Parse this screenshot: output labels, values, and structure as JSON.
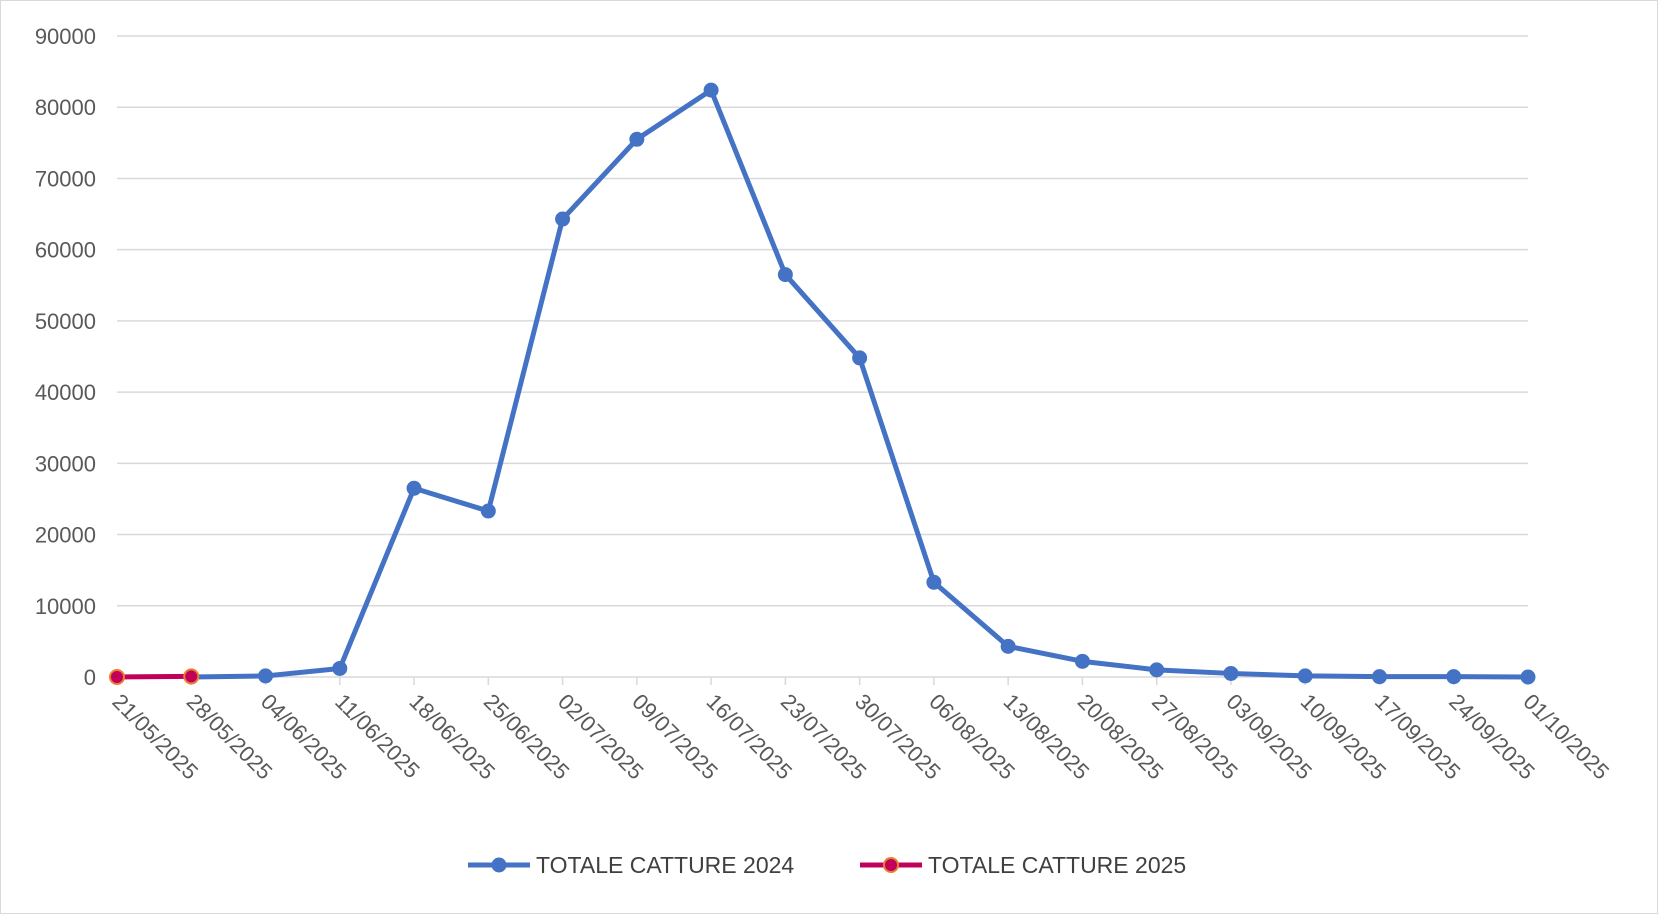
{
  "chart_data": {
    "type": "line",
    "title": "",
    "xlabel": "",
    "ylabel": "",
    "categories": [
      "21/05/2025",
      "28/05/2025",
      "04/06/2025",
      "11/06/2025",
      "18/06/2025",
      "25/06/2025",
      "02/07/2025",
      "09/07/2025",
      "16/07/2025",
      "23/07/2025",
      "30/07/2025",
      "06/08/2025",
      "13/08/2025",
      "20/08/2025",
      "27/08/2025",
      "03/09/2025",
      "10/09/2025",
      "17/09/2025",
      "24/09/2025",
      "01/10/2025"
    ],
    "ylim": [
      0,
      90000
    ],
    "yticks": [
      "0",
      "10000",
      "20000",
      "30000",
      "40000",
      "50000",
      "60000",
      "70000",
      "80000",
      "90000"
    ],
    "grid": true,
    "legend_position": "bottom",
    "series": [
      {
        "name": "TOTALE CATTURE 2024",
        "color": "#4472c4",
        "values": [
          null,
          0,
          150,
          1200,
          26500,
          23300,
          64300,
          75500,
          82400,
          56500,
          44800,
          13300,
          4300,
          2200,
          1000,
          500,
          150,
          50,
          50,
          0
        ]
      },
      {
        "name": "TOTALE CATTURE 2025",
        "color": "#c0005a",
        "marker_edge": "#ed7d31",
        "values": [
          0,
          80,
          null,
          null,
          null,
          null,
          null,
          null,
          null,
          null,
          null,
          null,
          null,
          null,
          null,
          null,
          null,
          null,
          null,
          null
        ]
      }
    ]
  }
}
